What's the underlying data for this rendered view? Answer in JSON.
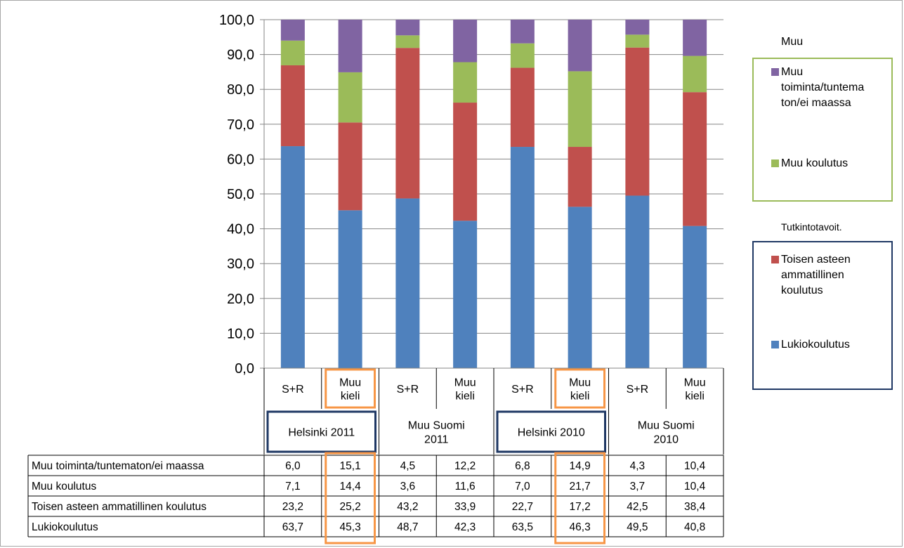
{
  "chart_data": {
    "type": "bar",
    "stacked": true,
    "ylim": [
      0,
      100
    ],
    "yticks": [
      "0,0",
      "10,0",
      "20,0",
      "30,0",
      "40,0",
      "50,0",
      "60,0",
      "70,0",
      "80,0",
      "90,0",
      "100,0"
    ],
    "grid": true,
    "categories": [
      "S+R",
      "Muu kieli",
      "S+R",
      "Muu kieli",
      "S+R",
      "Muu kieli",
      "S+R",
      "Muu kieli"
    ],
    "category_lines": [
      [
        "S+R"
      ],
      [
        "Muu",
        "kieli"
      ],
      [
        "S+R"
      ],
      [
        "Muu",
        "kieli"
      ],
      [
        "S+R"
      ],
      [
        "Muu",
        "kieli"
      ],
      [
        "S+R"
      ],
      [
        "Muu",
        "kieli"
      ]
    ],
    "groups": [
      {
        "lines": [
          "Helsinki 2011"
        ],
        "boxed": true
      },
      {
        "lines": [
          "Muu Suomi",
          "2011"
        ],
        "boxed": false
      },
      {
        "lines": [
          "Helsinki 2010"
        ],
        "boxed": true
      },
      {
        "lines": [
          "Muu Suomi",
          "2010"
        ],
        "boxed": false
      }
    ],
    "highlight_columns": [
      1,
      5
    ],
    "series": [
      {
        "name": "Lukiokoulutus",
        "color": "#4f81bd",
        "values": [
          63.7,
          45.3,
          48.7,
          42.3,
          63.5,
          46.3,
          49.5,
          40.8
        ]
      },
      {
        "name": "Toisen asteen ammatillinen koulutus",
        "color": "#c0504d",
        "values": [
          23.2,
          25.2,
          43.2,
          33.9,
          22.7,
          17.2,
          42.5,
          38.4
        ]
      },
      {
        "name": "Muu koulutus",
        "color": "#9bbb59",
        "values": [
          7.1,
          14.4,
          3.6,
          11.6,
          7.0,
          21.7,
          3.7,
          10.4
        ]
      },
      {
        "name": "Muu toiminta/tuntematon/ei maassa",
        "color": "#8064a2",
        "values": [
          6.0,
          15.1,
          4.5,
          12.2,
          6.8,
          14.9,
          4.3,
          10.4
        ]
      }
    ],
    "table": {
      "rows": [
        {
          "label": "Muu toiminta/tuntematon/ei maassa",
          "cells": [
            "6,0",
            "15,1",
            "4,5",
            "12,2",
            "6,8",
            "14,9",
            "4,3",
            "10,4"
          ]
        },
        {
          "label": "Muu koulutus",
          "cells": [
            "7,1",
            "14,4",
            "3,6",
            "11,6",
            "7,0",
            "21,7",
            "3,7",
            "10,4"
          ]
        },
        {
          "label": "Toisen asteen ammatillinen koulutus",
          "cells": [
            "23,2",
            "25,2",
            "43,2",
            "33,9",
            "22,7",
            "17,2",
            "42,5",
            "38,4"
          ]
        },
        {
          "label": "Lukiokoulutus",
          "cells": [
            "63,7",
            "45,3",
            "48,7",
            "42,3",
            "63,5",
            "46,3",
            "49,5",
            "40,8"
          ]
        }
      ]
    },
    "legend": {
      "placement": "right",
      "box1": {
        "title": "Muu",
        "border_color": "#9bbb59",
        "items": [
          {
            "lines": [
              "Muu",
              "toiminta/tuntema",
              "ton/ei maassa"
            ],
            "color": "#8064a2"
          },
          {
            "lines": [
              "Muu koulutus"
            ],
            "color": "#9bbb59"
          }
        ]
      },
      "box2": {
        "title": "Tutkintotavoit.",
        "border_color": "#1f3864",
        "items": [
          {
            "lines": [
              "Toisen asteen",
              "ammatillinen",
              "koulutus"
            ],
            "color": "#c0504d"
          },
          {
            "lines": [
              "Lukiokoulutus"
            ],
            "color": "#4f81bd"
          }
        ]
      }
    },
    "highlight_color": "#f79646",
    "group_box_color": "#1f3864"
  }
}
